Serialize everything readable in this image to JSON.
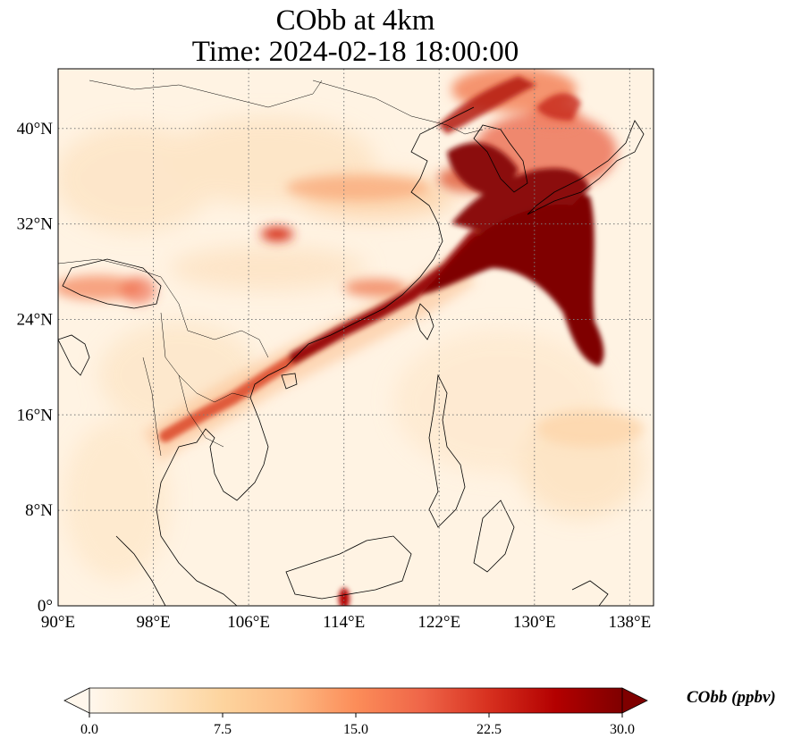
{
  "title": {
    "line1": "CObb at 4km",
    "line2": "Time: 2024-02-18 18:00:00"
  },
  "map": {
    "projection": "PlateCarree",
    "lon_range": [
      90,
      140
    ],
    "lat_range": [
      0,
      45
    ],
    "gridlines": "dotted",
    "x_ticks": [
      {
        "value": 90,
        "label": "90°E"
      },
      {
        "value": 98,
        "label": "98°E"
      },
      {
        "value": 106,
        "label": "106°E"
      },
      {
        "value": 114,
        "label": "114°E"
      },
      {
        "value": 122,
        "label": "122°E"
      },
      {
        "value": 130,
        "label": "130°E"
      },
      {
        "value": 138,
        "label": "138°E"
      }
    ],
    "y_ticks": [
      {
        "value": 0,
        "label": "0°"
      },
      {
        "value": 8,
        "label": "8°N"
      },
      {
        "value": 16,
        "label": "16°N"
      },
      {
        "value": 24,
        "label": "24°N"
      },
      {
        "value": 32,
        "label": "32°N"
      },
      {
        "value": 40,
        "label": "40°N"
      }
    ]
  },
  "colorbar": {
    "label": "CObb (ppbv)",
    "colormap": "OrRd",
    "min": 0.0,
    "max": 30.0,
    "extend": "both",
    "ticks": [
      "0.0",
      "7.5",
      "15.0",
      "22.5",
      "30.0"
    ],
    "colors": [
      "#fff7ec",
      "#fee8c8",
      "#fdd49e",
      "#fdbb84",
      "#fc8d59",
      "#ef6548",
      "#d7301f",
      "#b30000",
      "#7f0000"
    ]
  }
}
